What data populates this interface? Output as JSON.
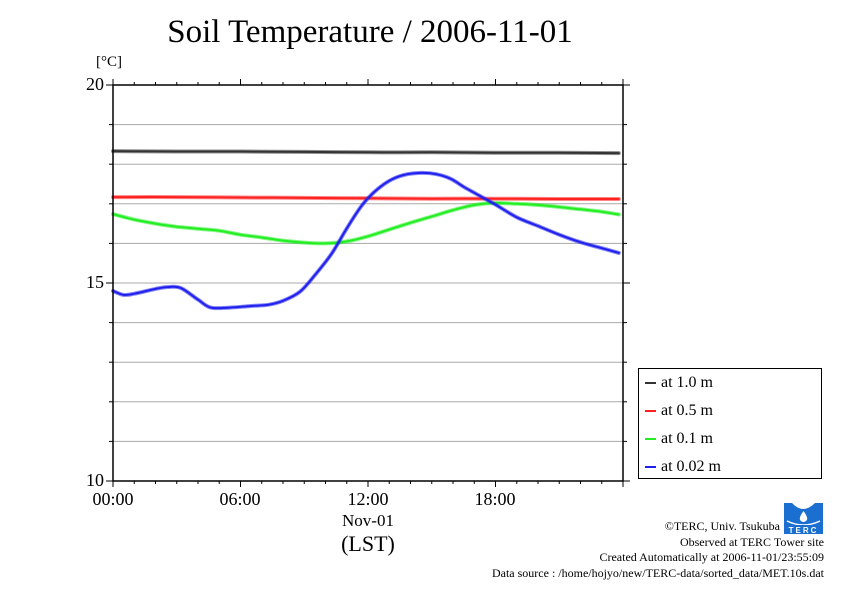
{
  "chart_data": {
    "type": "line",
    "title": "Soil Temperature / 2006-11-01",
    "ylabel": "[°C]",
    "xlabel": "(LST)",
    "x_sublabel": "Nov-01",
    "xlim_hours": [
      0,
      24
    ],
    "ylim": [
      10,
      20
    ],
    "yticks": [
      {
        "value": 20,
        "label": "20"
      },
      {
        "value": 15,
        "label": "15"
      },
      {
        "value": 10,
        "label": "10"
      }
    ],
    "xticks": [
      {
        "value": 0,
        "label": "00:00"
      },
      {
        "value": 6,
        "label": "06:00"
      },
      {
        "value": 12,
        "label": "12:00"
      },
      {
        "value": 18,
        "label": "18:00"
      }
    ],
    "grid": true,
    "legend_position": "right-bottom-outside",
    "series": [
      {
        "name": "at 1.0 m",
        "color": "#333333",
        "x": [
          0,
          3,
          6,
          9,
          12,
          15,
          18,
          21,
          23.8
        ],
        "y": [
          18.33,
          18.32,
          18.32,
          18.31,
          18.3,
          18.3,
          18.29,
          18.29,
          18.28
        ]
      },
      {
        "name": "at 0.5 m",
        "color": "#ff2020",
        "x": [
          0,
          3,
          6,
          9,
          12,
          15,
          18,
          21,
          23.8
        ],
        "y": [
          17.17,
          17.17,
          17.16,
          17.15,
          17.14,
          17.13,
          17.13,
          17.12,
          17.12
        ]
      },
      {
        "name": "at 0.1 m",
        "color": "#22ee22",
        "x": [
          0,
          1,
          2,
          3,
          4,
          5,
          6,
          7,
          8,
          9,
          10,
          11,
          12,
          13,
          14,
          15,
          16,
          17,
          18,
          19,
          20,
          21,
          22,
          23,
          23.8
        ],
        "y": [
          16.74,
          16.6,
          16.5,
          16.42,
          16.37,
          16.32,
          16.22,
          16.15,
          16.07,
          16.02,
          16.0,
          16.05,
          16.18,
          16.35,
          16.52,
          16.68,
          16.84,
          16.97,
          17.02,
          17.0,
          16.97,
          16.92,
          16.86,
          16.8,
          16.73
        ]
      },
      {
        "name": "at 0.02 m",
        "color": "#2020ee",
        "x": [
          0,
          0.5,
          1,
          2,
          2.6,
          3.2,
          4,
          4.6,
          5.5,
          6.5,
          7.3,
          8,
          8.8,
          9.5,
          10.3,
          11,
          11.7,
          12.3,
          13,
          13.7,
          14.5,
          15.2,
          15.9,
          16.5,
          17.2,
          18,
          19,
          20,
          21,
          22,
          23,
          23.8
        ],
        "y": [
          14.8,
          14.7,
          14.73,
          14.85,
          14.9,
          14.87,
          14.58,
          14.38,
          14.38,
          14.42,
          14.45,
          14.55,
          14.78,
          15.2,
          15.75,
          16.38,
          16.95,
          17.3,
          17.58,
          17.73,
          17.78,
          17.75,
          17.63,
          17.43,
          17.22,
          16.98,
          16.66,
          16.44,
          16.22,
          16.03,
          15.88,
          15.76
        ]
      }
    ]
  },
  "credits": {
    "copyright": "©TERC, Univ. Tsukuba",
    "observed": "Observed at TERC Tower site",
    "created": "Created Automatically at 2006-11-01/23:55:09",
    "source": "Data source : /home/hojyo/new/TERC-data/sorted_data/MET.10s.dat",
    "logo_text": "TERC"
  }
}
